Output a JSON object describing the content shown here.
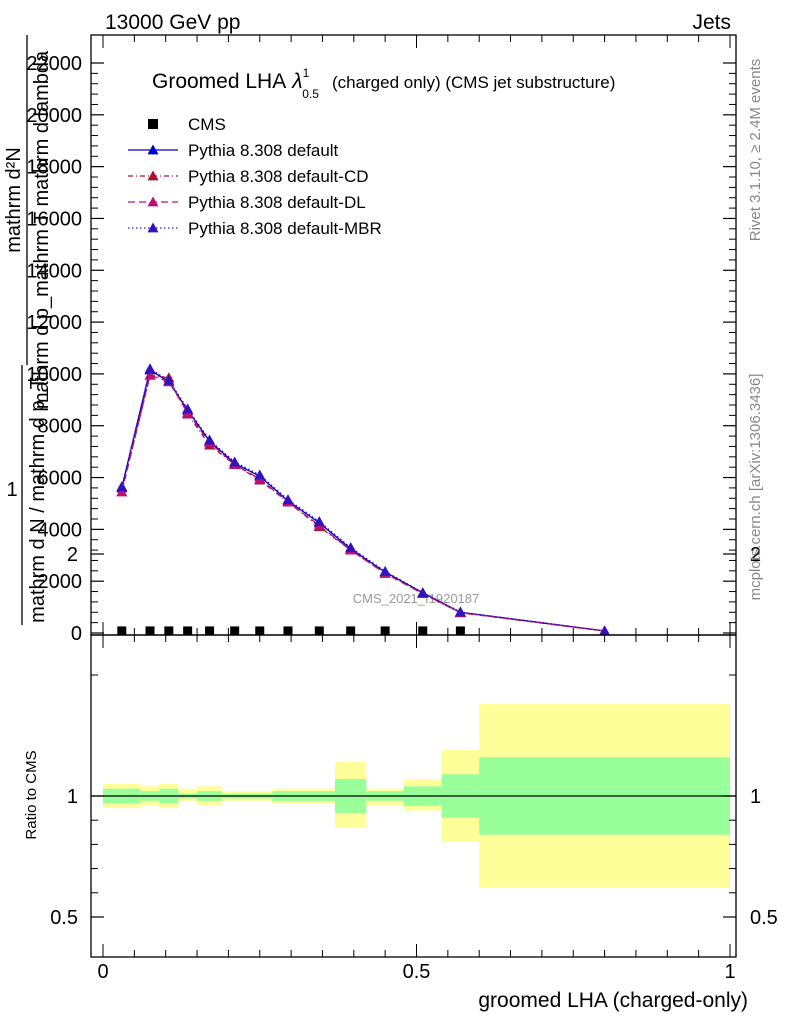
{
  "header": {
    "left": "13000 GeV pp",
    "right": "Jets"
  },
  "side_labels": {
    "rivet": "Rivet 3.1.10, ≥ 2.4M events",
    "mcplots": "mcplots.cern.ch [arXiv:1306.3436]"
  },
  "chart_data": [
    {
      "type": "line",
      "title": "Groomed LHA",
      "title_symbol": "λ",
      "title_sup": "1",
      "title_sub": "0.5",
      "title_suffix": "(charged only) (CMS jet substructure)",
      "ylabel_top": "mathrm d²N",
      "ylabel_frac": "mathrm d p_mathrm T mathrm d lambda",
      "ylabel_bottom": "mathrm d N / mathrm d p_T",
      "ylabel_one": "1",
      "watermark": "CMS_2021_I1920187",
      "xlim": [
        0,
        1
      ],
      "ylim": [
        0,
        23000
      ],
      "y_ticks": [
        {
          "v": 0,
          "label": "0"
        },
        {
          "v": 2000,
          "label": "2000"
        },
        {
          "v": 4000,
          "label": "4000"
        },
        {
          "v": 6000,
          "label": "6000"
        },
        {
          "v": 8000,
          "label": "8000"
        },
        {
          "v": 10000,
          "label": "10000"
        },
        {
          "v": 12000,
          "label": "12000"
        },
        {
          "v": 14000,
          "label": "14000"
        },
        {
          "v": 16000,
          "label": "16000"
        },
        {
          "v": 18000,
          "label": "18000"
        },
        {
          "v": 20000,
          "label": "20000"
        },
        {
          "v": 22000,
          "label": "22000"
        }
      ],
      "x_points": [
        0.03,
        0.075,
        0.105,
        0.135,
        0.17,
        0.21,
        0.25,
        0.295,
        0.345,
        0.395,
        0.45,
        0.51,
        0.57,
        0.8
      ],
      "legend": {
        "placement": "top-left"
      },
      "series": [
        {
          "name": "CMS",
          "color": "#000000",
          "marker": "square",
          "dash": "",
          "values": [
            80,
            80,
            80,
            80,
            80,
            80,
            80,
            80,
            80,
            80,
            80,
            80,
            80,
            null
          ]
        },
        {
          "name": "Pythia 8.308 default",
          "color": "#0000cc",
          "marker": "triangle",
          "dash": "",
          "values": [
            5600,
            10150,
            9700,
            8600,
            7400,
            6550,
            6050,
            5100,
            4250,
            3250,
            2350,
            1550,
            800,
            80
          ]
        },
        {
          "name": "Pythia 8.308 default-CD",
          "color": "#aa1133",
          "marker": "triangle",
          "dash": "5,3,1,3",
          "values": [
            5450,
            9950,
            9850,
            8450,
            7250,
            6500,
            5900,
            5050,
            4100,
            3200,
            2300,
            1520,
            780,
            75
          ]
        },
        {
          "name": "Pythia 8.308 default-DL",
          "color": "#bb1177",
          "marker": "triangle",
          "dash": "7,4",
          "values": [
            5450,
            9950,
            9700,
            8500,
            7350,
            6500,
            5950,
            5050,
            4150,
            3200,
            2300,
            1520,
            790,
            78
          ]
        },
        {
          "name": "Pythia 8.308 default-MBR",
          "color": "#3311bb",
          "marker": "triangle",
          "dash": "1.5,2.5",
          "values": [
            5650,
            10200,
            9750,
            8650,
            7450,
            6600,
            6100,
            5150,
            4300,
            3300,
            2380,
            1560,
            810,
            82
          ]
        }
      ]
    },
    {
      "type": "area",
      "ylabel": "Ratio to CMS",
      "xlabel": "groomed LHA (charged-only)",
      "xlim": [
        0,
        1
      ],
      "ylim": [
        0.4,
        2.3
      ],
      "y_ticks": [
        {
          "v": 0.5,
          "label": "0.5"
        },
        {
          "v": 1,
          "label": "1"
        },
        {
          "v": 2,
          "label": "2"
        }
      ],
      "x_ticks": [
        {
          "v": 0,
          "label": "0"
        },
        {
          "v": 0.5,
          "label": "0.5"
        },
        {
          "v": 1,
          "label": "1"
        }
      ],
      "reference": 1,
      "band_colors": {
        "outer": "#ffff99",
        "inner": "#99ff99",
        "line": "#000000"
      },
      "bins": [
        {
          "x0": 0.0,
          "x1": 0.06,
          "inner": [
            0.97,
            1.03
          ],
          "outer": [
            0.95,
            1.05
          ]
        },
        {
          "x0": 0.06,
          "x1": 0.09,
          "inner": [
            0.98,
            1.02
          ],
          "outer": [
            0.96,
            1.04
          ]
        },
        {
          "x0": 0.09,
          "x1": 0.12,
          "inner": [
            0.97,
            1.03
          ],
          "outer": [
            0.95,
            1.05
          ]
        },
        {
          "x0": 0.12,
          "x1": 0.15,
          "inner": [
            0.99,
            1.01
          ],
          "outer": [
            0.98,
            1.03
          ]
        },
        {
          "x0": 0.15,
          "x1": 0.19,
          "inner": [
            0.98,
            1.02
          ],
          "outer": [
            0.96,
            1.04
          ]
        },
        {
          "x0": 0.19,
          "x1": 0.27,
          "inner": [
            0.99,
            1.01
          ],
          "outer": [
            0.98,
            1.02
          ]
        },
        {
          "x0": 0.27,
          "x1": 0.37,
          "inner": [
            0.98,
            1.02
          ],
          "outer": [
            0.97,
            1.03
          ]
        },
        {
          "x0": 0.37,
          "x1": 0.42,
          "inner": [
            0.93,
            1.07
          ],
          "outer": [
            0.87,
            1.14
          ]
        },
        {
          "x0": 0.42,
          "x1": 0.48,
          "inner": [
            0.98,
            1.02
          ],
          "outer": [
            0.96,
            1.03
          ]
        },
        {
          "x0": 0.48,
          "x1": 0.54,
          "inner": [
            0.96,
            1.04
          ],
          "outer": [
            0.94,
            1.07
          ]
        },
        {
          "x0": 0.54,
          "x1": 0.6,
          "inner": [
            0.91,
            1.09
          ],
          "outer": [
            0.81,
            1.19
          ]
        },
        {
          "x0": 0.6,
          "x1": 1.0,
          "inner": [
            0.84,
            1.16
          ],
          "outer": [
            0.62,
            1.38
          ]
        }
      ]
    }
  ]
}
